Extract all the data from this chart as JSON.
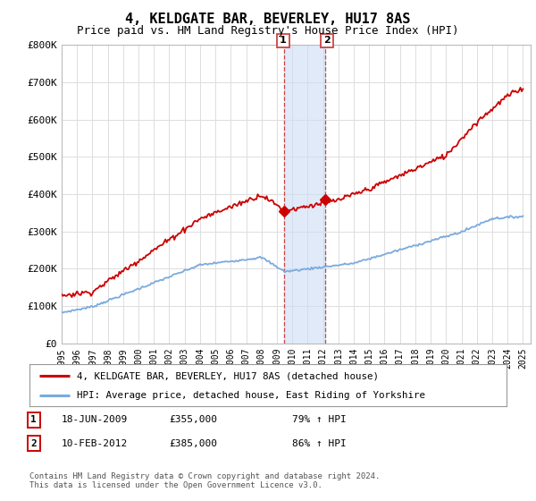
{
  "title": "4, KELDGATE BAR, BEVERLEY, HU17 8AS",
  "subtitle": "Price paid vs. HM Land Registry's House Price Index (HPI)",
  "title_fontsize": 11,
  "subtitle_fontsize": 9,
  "ylim": [
    0,
    800000
  ],
  "xlim_start": 1995.0,
  "xlim_end": 2025.5,
  "yticks": [
    0,
    100000,
    200000,
    300000,
    400000,
    500000,
    600000,
    700000,
    800000
  ],
  "ytick_labels": [
    "£0",
    "£100K",
    "£200K",
    "£300K",
    "£400K",
    "£500K",
    "£600K",
    "£700K",
    "£800K"
  ],
  "xtick_years": [
    1995,
    1996,
    1997,
    1998,
    1999,
    2000,
    2001,
    2002,
    2003,
    2004,
    2005,
    2006,
    2007,
    2008,
    2009,
    2010,
    2011,
    2012,
    2013,
    2014,
    2015,
    2016,
    2017,
    2018,
    2019,
    2020,
    2021,
    2022,
    2023,
    2024,
    2025
  ],
  "sale1_x": 2009.46,
  "sale1_y": 355000,
  "sale1_label": "1",
  "sale2_x": 2012.11,
  "sale2_y": 385000,
  "sale2_label": "2",
  "shade_color": "#ccddf5",
  "shade_alpha": 0.6,
  "red_line_color": "#cc0000",
  "blue_line_color": "#7aaadd",
  "marker_color": "#cc0000",
  "legend_line1": "4, KELDGATE BAR, BEVERLEY, HU17 8AS (detached house)",
  "legend_line2": "HPI: Average price, detached house, East Riding of Yorkshire",
  "transaction1_num": "1",
  "transaction1_date": "18-JUN-2009",
  "transaction1_price": "£355,000",
  "transaction1_hpi": "79% ↑ HPI",
  "transaction2_num": "2",
  "transaction2_date": "10-FEB-2012",
  "transaction2_price": "£385,000",
  "transaction2_hpi": "86% ↑ HPI",
  "footer_text": "Contains HM Land Registry data © Crown copyright and database right 2024.\nThis data is licensed under the Open Government Licence v3.0.",
  "background_color": "#ffffff",
  "grid_color": "#dddddd"
}
